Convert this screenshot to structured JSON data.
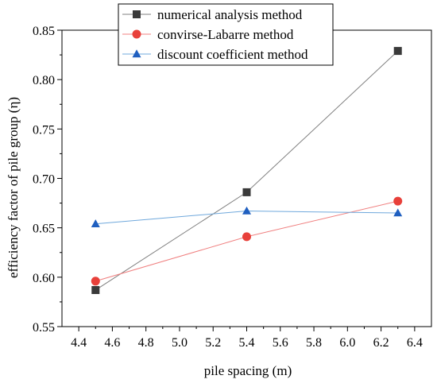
{
  "chart_data": {
    "type": "line",
    "title": "",
    "xlabel": "pile spacing (m)",
    "ylabel": "efficiency factor of pile group (η)",
    "xlim": [
      4.3,
      6.5
    ],
    "ylim": [
      0.55,
      0.85
    ],
    "xticks": [
      4.4,
      4.6,
      4.8,
      5.0,
      5.2,
      5.4,
      5.6,
      5.8,
      6.0,
      6.2,
      6.4
    ],
    "xtick_labels": [
      "4.4",
      "4.6",
      "4.8",
      "5.0",
      "5.2",
      "5.4",
      "5.6",
      "5.8",
      "6.0",
      "6.2",
      "6.4"
    ],
    "yticks": [
      0.55,
      0.6,
      0.65,
      0.7,
      0.75,
      0.8,
      0.85
    ],
    "ytick_labels": [
      "0.55",
      "0.60",
      "0.65",
      "0.70",
      "0.75",
      "0.80",
      "0.85"
    ],
    "grid": false,
    "legend_position": "top-center",
    "x": [
      4.5,
      5.4,
      6.3
    ],
    "series": [
      {
        "name": "numerical analysis method",
        "values": [
          0.587,
          0.686,
          0.829
        ],
        "line_color": "#808080",
        "marker_color": "#3a3a3a",
        "marker": "square"
      },
      {
        "name": "convirse-Labarre method",
        "values": [
          0.596,
          0.641,
          0.677
        ],
        "line_color": "#f08080",
        "marker_color": "#e8403a",
        "marker": "circle"
      },
      {
        "name": "discount coefficient method",
        "values": [
          0.654,
          0.667,
          0.665
        ],
        "line_color": "#6fa8dc",
        "marker_color": "#1f5fc0",
        "marker": "triangle"
      }
    ]
  }
}
